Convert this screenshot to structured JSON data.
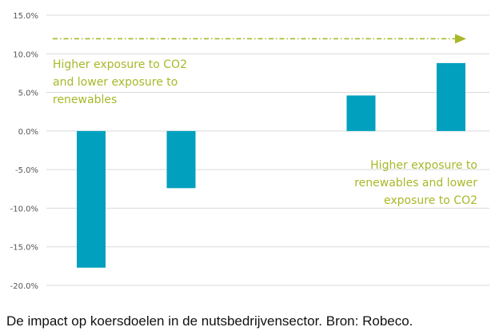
{
  "chart_data": {
    "type": "bar",
    "categories": [
      "",
      "",
      "",
      "",
      ""
    ],
    "values": [
      -17.7,
      -7.4,
      null,
      4.6,
      8.8
    ],
    "ylim": [
      -20,
      15
    ],
    "yticks": [
      "15.0%",
      "10.0%",
      "5.0%",
      "0.0%",
      "-5.0%",
      "-10.0%",
      "-15.0%",
      "-20.0%"
    ],
    "ytick_values": [
      15,
      10,
      5,
      0,
      -5,
      -10,
      -15,
      -20
    ],
    "grid": true,
    "bar_color": "#00A0BE",
    "annotation_color": "#A8B829",
    "annotations": {
      "left_lines": [
        "Higher exposure to CO2",
        "and lower exposure to",
        "renewables"
      ],
      "right_lines": [
        "Higher exposure to",
        "renewables and lower",
        "exposure to CO2"
      ]
    },
    "arrow_y_value": 12.0
  },
  "caption": "De impact op koersdoelen in de nutsbedrijvensector. Bron: Robeco."
}
